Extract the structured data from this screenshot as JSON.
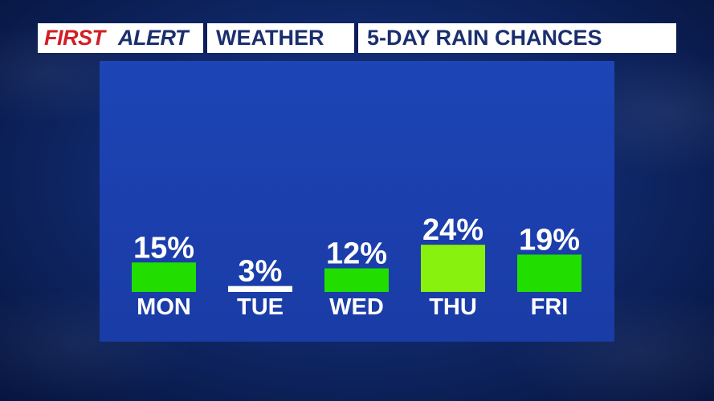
{
  "header": {
    "brand_first": "FIRST",
    "brand_alert": "ALERT",
    "section": "WEATHER",
    "title": "5-DAY RAIN CHANCES"
  },
  "colors": {
    "brand_red": "#d21f26",
    "header_navy": "#1b2f6e",
    "bar_green": "#22dd00",
    "bar_highlight": "#88f20e",
    "panel_blue": "#1b40ae"
  },
  "chart_data": {
    "type": "bar",
    "categories": [
      "MON",
      "TUE",
      "WED",
      "THU",
      "FRI"
    ],
    "values": [
      15,
      3,
      12,
      24,
      19
    ],
    "value_labels": [
      "15%",
      "3%",
      "12%",
      "24%",
      "19%"
    ],
    "highlight_index": 3,
    "ylabel": "",
    "xlabel": "",
    "grid": false
  }
}
